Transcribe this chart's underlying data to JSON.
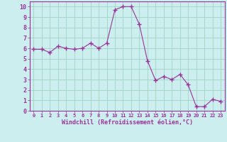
{
  "x": [
    0,
    1,
    2,
    3,
    4,
    5,
    6,
    7,
    8,
    9,
    10,
    11,
    12,
    13,
    14,
    15,
    16,
    17,
    18,
    19,
    20,
    21,
    22,
    23
  ],
  "y": [
    5.9,
    5.9,
    5.6,
    6.2,
    6.0,
    5.9,
    6.0,
    6.5,
    6.0,
    6.5,
    9.7,
    10.0,
    10.0,
    8.3,
    4.8,
    2.9,
    3.3,
    3.0,
    3.5,
    2.5,
    0.4,
    0.4,
    1.1,
    0.9
  ],
  "line_color": "#993399",
  "marker": "+",
  "marker_size": 4,
  "bg_color": "#cceeee",
  "grid_color": "#99ccbb",
  "xlabel": "Windchill (Refroidissement éolien,°C)",
  "xlabel_color": "#993399",
  "tick_color": "#993399",
  "xlim": [
    -0.5,
    23.5
  ],
  "ylim": [
    0,
    10.5
  ],
  "yticks": [
    0,
    1,
    2,
    3,
    4,
    5,
    6,
    7,
    8,
    9,
    10
  ],
  "xticks": [
    0,
    1,
    2,
    3,
    4,
    5,
    6,
    7,
    8,
    9,
    10,
    11,
    12,
    13,
    14,
    15,
    16,
    17,
    18,
    19,
    20,
    21,
    22,
    23
  ],
  "figsize": [
    3.2,
    2.0
  ],
  "dpi": 100
}
